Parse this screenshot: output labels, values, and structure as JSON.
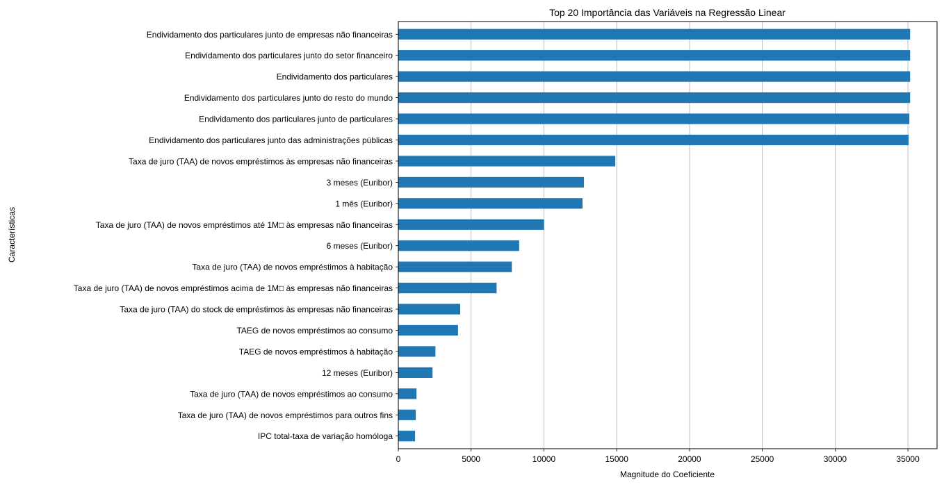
{
  "chart_data": {
    "type": "bar",
    "orientation": "horizontal",
    "title": "Top 20 Importância das Variáveis na Regressão Linear",
    "xlabel": "Magnitude do Coeficiente",
    "ylabel": "Características",
    "xlim": [
      0,
      37000
    ],
    "xticks": [
      0,
      5000,
      10000,
      15000,
      20000,
      25000,
      30000,
      35000
    ],
    "grid": "x",
    "bar_color": "#1f77b4",
    "categories": [
      "Endividamento dos particulares junto de empresas não financeiras",
      "Endividamento dos particulares junto do setor financeiro",
      "Endividamento dos particulares",
      "Endividamento dos particulares junto do resto do mundo",
      "Endividamento dos particulares junto de particulares",
      "Endividamento dos particulares junto das administrações públicas",
      "Taxa de juro (TAA) de novos empréstimos às empresas não financeiras",
      "3 meses (Euribor)",
      "1 mês (Euribor)",
      "Taxa de juro (TAA) de novos empréstimos até 1M□ às empresas não financeiras",
      "6 meses (Euribor)",
      "Taxa de juro (TAA) de novos empréstimos à habitação",
      "Taxa de juro (TAA) de novos empréstimos acima de 1M□ às empresas não financeiras",
      "Taxa de juro (TAA) do stock de empréstimos às empresas não financeiras",
      "TAEG de novos empréstimos ao consumo",
      "TAEG de novos empréstimos à habitação",
      "12 meses (Euribor)",
      "Taxa de juro (TAA) de novos empréstimos ao consumo",
      "Taxa de juro (TAA) de novos empréstimos para outros fins",
      "IPC total-taxa de variação homóloga"
    ],
    "values": [
      35150,
      35150,
      35150,
      35150,
      35100,
      35050,
      14900,
      12750,
      12650,
      10000,
      8300,
      7800,
      6750,
      4250,
      4100,
      2550,
      2350,
      1250,
      1200,
      1150
    ]
  }
}
